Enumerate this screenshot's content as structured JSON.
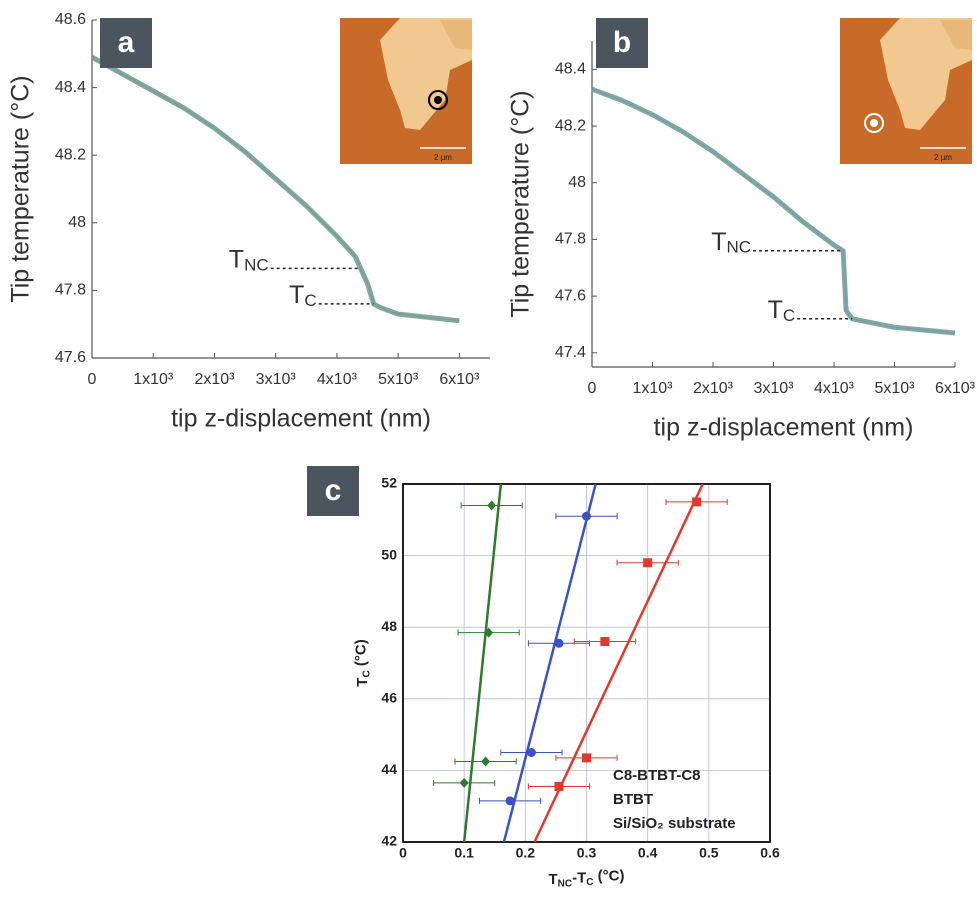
{
  "chart_data": [
    {
      "type": "line",
      "panel_label": "a",
      "x_label": "tip z-displacement (nm)",
      "y_label": "Tip temperature (°C)",
      "x": [
        0,
        500,
        1000,
        1500,
        2000,
        2500,
        3000,
        3500,
        4000,
        4300,
        4500,
        4600,
        4700,
        5000,
        5500,
        6000
      ],
      "series": [
        {
          "color": "#5f9e8f",
          "values": [
            48.49,
            48.44,
            48.39,
            48.34,
            48.28,
            48.21,
            48.13,
            48.05,
            47.96,
            47.9,
            47.82,
            47.76,
            47.75,
            47.73,
            47.72,
            47.71
          ]
        }
      ],
      "xlim": [
        0,
        6500
      ],
      "ylim": [
        47.6,
        48.6
      ],
      "xticks": [
        0,
        {
          "value": 1000,
          "label": "1x10³"
        },
        {
          "value": 2000,
          "label": "2x10³"
        },
        {
          "value": 3000,
          "label": "3x10³"
        },
        {
          "value": 4000,
          "label": "4x10³"
        },
        {
          "value": 5000,
          "label": "5x10³"
        },
        {
          "value": 6000,
          "label": "6x10³"
        }
      ],
      "yticks": [
        47.6,
        47.8,
        48.0,
        48.2,
        48.4,
        48.6
      ],
      "annotations": [
        {
          "label": [
            {
              "text": "T"
            },
            {
              "text": "NC",
              "sub": true
            }
          ],
          "value": 47.865
        },
        {
          "label": [
            {
              "text": "T"
            },
            {
              "text": "C",
              "sub": true
            }
          ],
          "value": 47.76
        }
      ],
      "inset_scale": "2 µm"
    },
    {
      "type": "line",
      "panel_label": "b",
      "x_label": "tip z-displacement (nm)",
      "y_label": "Tip temperature (°C)",
      "x": [
        0,
        500,
        1000,
        1500,
        2000,
        2500,
        3000,
        3500,
        4000,
        4150,
        4200,
        4300,
        5000,
        6000
      ],
      "series": [
        {
          "color": "#5f9e9f",
          "values": [
            48.33,
            48.29,
            48.24,
            48.18,
            48.11,
            48.03,
            47.95,
            47.86,
            47.78,
            47.76,
            47.55,
            47.52,
            47.49,
            47.47
          ]
        }
      ],
      "xlim": [
        0,
        6000
      ],
      "ylim": [
        47.35,
        48.5
      ],
      "xticks": [
        0,
        {
          "value": 1000,
          "label": "1x10³"
        },
        {
          "value": 2000,
          "label": "2x10³"
        },
        {
          "value": 3000,
          "label": "3x10³"
        },
        {
          "value": 4000,
          "label": "4x10³"
        },
        {
          "value": 5000,
          "label": "5x10³"
        },
        {
          "value": 6000,
          "label": "6x10³"
        }
      ],
      "yticks": [
        47.4,
        47.6,
        47.8,
        48.0,
        48.2,
        48.4
      ],
      "annotations": [
        {
          "label": [
            {
              "text": "T"
            },
            {
              "text": "NC",
              "sub": true
            }
          ],
          "value": 47.76
        },
        {
          "label": [
            {
              "text": "T"
            },
            {
              "text": "C",
              "sub": true
            }
          ],
          "value": 47.52
        }
      ],
      "inset_scale": "2 µm"
    },
    {
      "type": "scatter",
      "panel_label": "c",
      "x_label": [
        {
          "text": "T"
        },
        {
          "text": "NC",
          "sub": true
        },
        {
          "text": "-T"
        },
        {
          "text": "C",
          "sub": true
        },
        {
          "text": " (°C)"
        }
      ],
      "y_label": [
        {
          "text": "T"
        },
        {
          "text": "C",
          "sub": true
        },
        {
          "text": " (°C)"
        }
      ],
      "xlim": [
        0,
        0.6
      ],
      "ylim": [
        42,
        52
      ],
      "xticks": [
        0,
        0.1,
        0.2,
        0.3,
        0.4,
        0.5,
        0.6
      ],
      "yticks": [
        42,
        44,
        46,
        48,
        50,
        52
      ],
      "grid": true,
      "series": [
        {
          "name": "C8-BTBT-C8",
          "color": "#2e7a2e",
          "marker": "diamond",
          "x": [
            0.1,
            0.135,
            0.14,
            0.145
          ],
          "values": [
            43.65,
            44.25,
            47.85,
            51.4
          ],
          "xerr": [
            0.05,
            0.05,
            0.05,
            0.05
          ],
          "fit": {
            "x": [
              0.1,
              0.16
            ],
            "values": [
              42,
              52
            ]
          }
        },
        {
          "name": "BTBT",
          "color": "#3a52c4",
          "marker": "circle",
          "x": [
            0.175,
            0.21,
            0.255,
            0.3
          ],
          "values": [
            43.15,
            44.5,
            47.55,
            51.1
          ],
          "xerr": [
            0.05,
            0.05,
            0.05,
            0.05
          ],
          "fit": {
            "x": [
              0.165,
              0.315
            ],
            "values": [
              42,
              52
            ]
          }
        },
        {
          "name": "Si/SiO₂ substrate",
          "color": "#e03a2e",
          "marker": "square",
          "x": [
            0.255,
            0.3,
            0.33,
            0.4,
            0.48
          ],
          "values": [
            43.55,
            44.35,
            47.6,
            49.8,
            51.5
          ],
          "xerr": [
            0.05,
            0.05,
            0.05,
            0.05,
            0.05
          ],
          "fit": {
            "x": [
              0.215,
              0.49
            ],
            "values": [
              42,
              52
            ]
          }
        }
      ]
    }
  ]
}
